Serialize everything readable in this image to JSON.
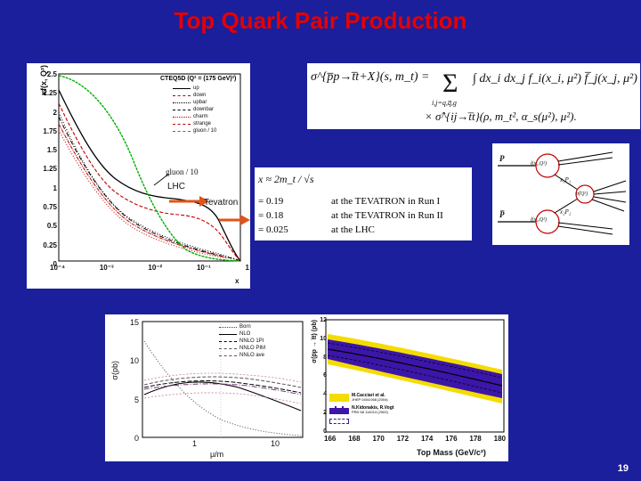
{
  "slide": {
    "title": "Top Quark Pair Production",
    "page_number": "19"
  },
  "pdf_plot": {
    "ylabel": "xf(x, Q²)",
    "xlabel": "x",
    "y_ticks": [
      "2.5",
      "2.25",
      "2",
      "1.75",
      "1.5",
      "1.25",
      "1",
      "0.75",
      "0.5",
      "0.25",
      "0"
    ],
    "x_ticks": [
      "10⁻⁴",
      "10⁻³",
      "10⁻²",
      "10⁻¹",
      "1"
    ],
    "legend_title": "CTEQ5D (Q² = (175 GeV)²)",
    "legend": [
      "up",
      "down",
      "upbar",
      "downbar",
      "charm",
      "strange",
      "gluon / 10"
    ],
    "gluon_label": "gluon / 10",
    "lhc_label": "LHC",
    "tevatron_label": "Tevatron"
  },
  "cross_section_formula": {
    "lhs": "σ^{p̅p→t̅t+X}(s, m_t) =",
    "sum_sub": "i,j=q,q̅,g",
    "integrand": "∫ dx_i dx_j f_i(x_i, μ²) f̅_j(x_j, μ²)",
    "partonic": "× σ̂^{ij→t̅t}(ρ, m_t², α_s(μ²), μ²)."
  },
  "x_formula": {
    "x_def": "x ≈ 2m_t / √s",
    "rows": [
      {
        "value": "= 0.19",
        "desc": "at the TEVATRON in Run I"
      },
      {
        "value": "= 0.18",
        "desc": "at the TEVATRON in Run II"
      },
      {
        "value": "= 0.025",
        "desc": "at the LHC"
      }
    ]
  },
  "feynman": {
    "p_label": "P",
    "pbar_label": "P̅",
    "f_top": "f(x₁,Q²)",
    "f_bottom": "f(x₂,Q²)",
    "x1": "x₁P₁",
    "x2": "x₂P₂",
    "sigma": "σ̂(Q²)"
  },
  "scale_plot": {
    "ylabel": "σ(pb)",
    "xlabel": "μ/m",
    "y_ticks": [
      "15",
      "10",
      "5",
      "0"
    ],
    "x_ticks": [
      "1",
      "10"
    ],
    "legend": [
      "Born",
      "NLO",
      "NNLO 1PI",
      "NNLO PIM",
      "NNLO ave"
    ]
  },
  "mass_plot": {
    "ylabel": "σ(p̅p → t̅t) (pb)",
    "xlabel": "Top Mass (GeV/c²)",
    "y_ticks": [
      "12",
      "10",
      "8",
      "6",
      "4",
      "2",
      "0"
    ],
    "x_ticks": [
      "166",
      "168",
      "170",
      "172",
      "174",
      "176",
      "178",
      "180"
    ],
    "legend": [
      {
        "label": "M.Cacciari et al.",
        "sub": "JHEP 0404:068 (2004)"
      },
      {
        "label": "N.Kidonakis, R.Vogt",
        "sub": "PRD 68 114014 (2003)"
      },
      {
        "label": "",
        "sub": ""
      }
    ],
    "colors": {
      "band_outer": "#f5dc00",
      "band_inner": "#3b16a8",
      "center": "#000000"
    }
  }
}
